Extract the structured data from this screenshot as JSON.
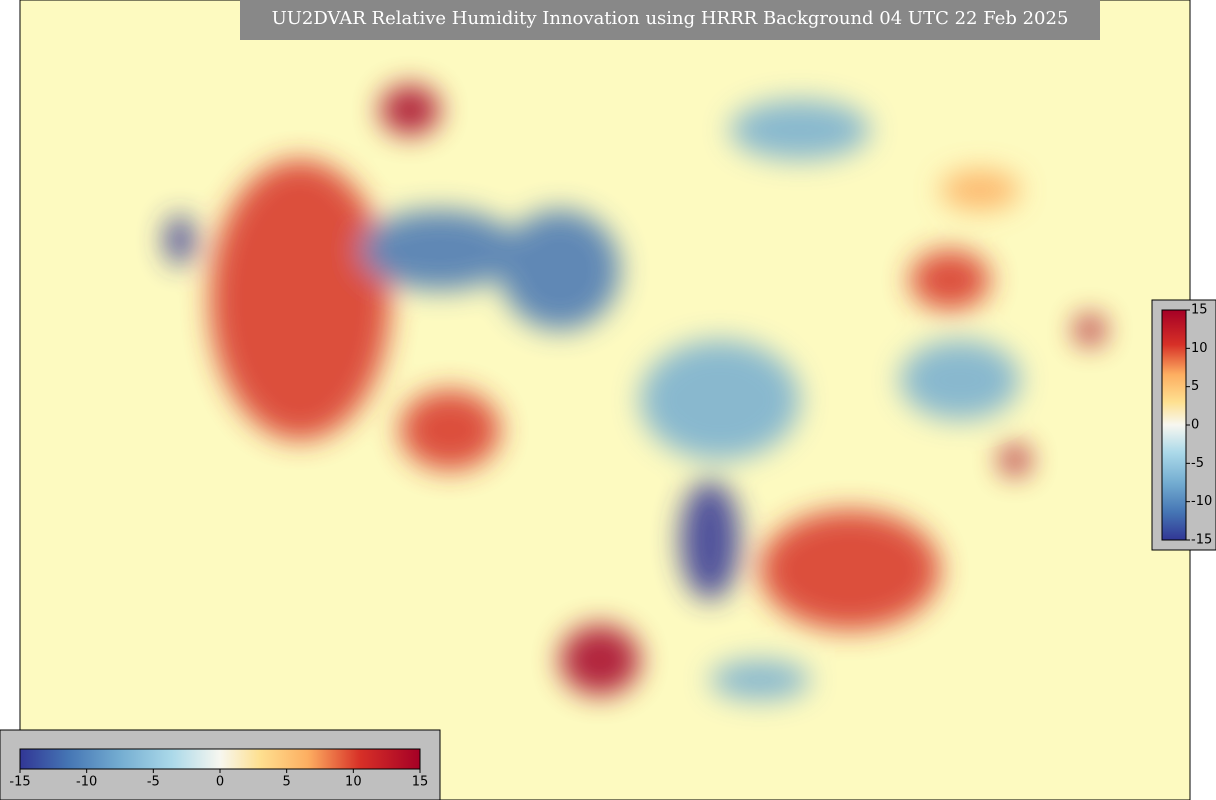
{
  "title": "UU2DVAR Relative Humidity Innovation using HRRR Background 04 UTC 22 Feb 2025",
  "colorbar_horizontal": {
    "ticks": [
      -15,
      -10,
      -5,
      0,
      5,
      10,
      15
    ]
  },
  "colorbar_vertical": {
    "ticks": [
      15,
      10,
      5,
      0,
      -5,
      -10,
      -15
    ]
  }
}
